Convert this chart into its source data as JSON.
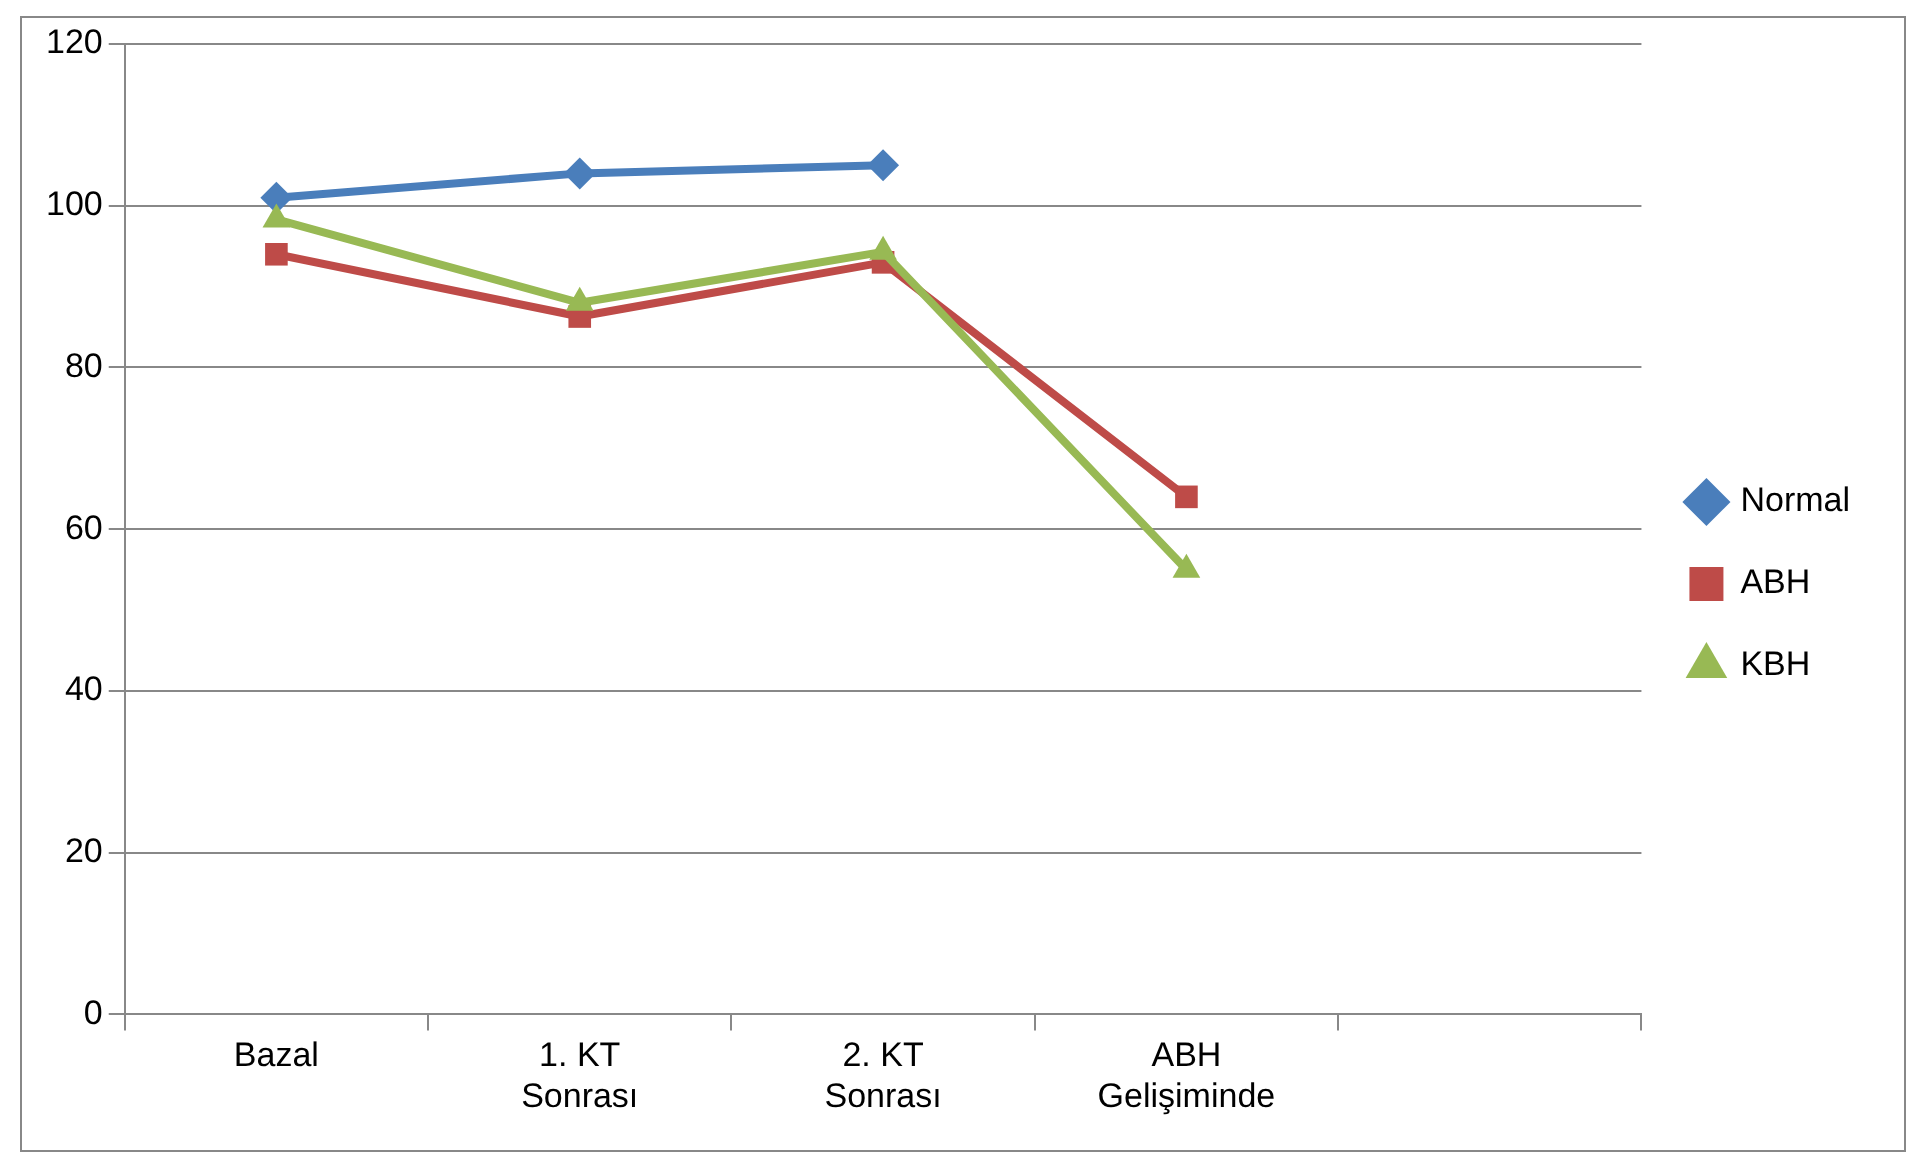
{
  "chart_data": {
    "type": "line",
    "categories": [
      "Bazal",
      "1. KT Sonrası",
      "2. KT Sonrası",
      "ABH Gelişiminde",
      null
    ],
    "series": [
      {
        "name": "Normal",
        "color": "#4a7ebb",
        "marker": "diamond",
        "values": [
          101,
          104,
          105,
          null,
          null
        ]
      },
      {
        "name": "ABH",
        "color": "#be4b48",
        "marker": "square",
        "values": [
          94,
          86.3,
          93,
          64,
          null
        ]
      },
      {
        "name": "KBH",
        "color": "#98b954",
        "marker": "triangle",
        "values": [
          98.3,
          88,
          94.3,
          55,
          null
        ]
      }
    ],
    "ylim": [
      0,
      120
    ],
    "yticks": [
      0,
      20,
      40,
      60,
      80,
      100,
      120
    ],
    "grid": "y",
    "legend": "right",
    "line_style": "solid"
  }
}
